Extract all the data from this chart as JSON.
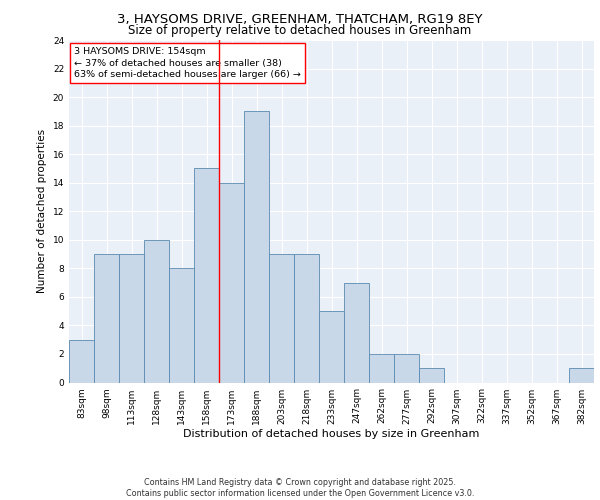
{
  "title_line1": "3, HAYSOMS DRIVE, GREENHAM, THATCHAM, RG19 8EY",
  "title_line2": "Size of property relative to detached houses in Greenham",
  "xlabel": "Distribution of detached houses by size in Greenham",
  "ylabel": "Number of detached properties",
  "categories": [
    "83sqm",
    "98sqm",
    "113sqm",
    "128sqm",
    "143sqm",
    "158sqm",
    "173sqm",
    "188sqm",
    "203sqm",
    "218sqm",
    "233sqm",
    "247sqm",
    "262sqm",
    "277sqm",
    "292sqm",
    "307sqm",
    "322sqm",
    "337sqm",
    "352sqm",
    "367sqm",
    "382sqm"
  ],
  "values": [
    3,
    9,
    9,
    10,
    8,
    15,
    14,
    19,
    9,
    9,
    5,
    7,
    2,
    2,
    1,
    0,
    0,
    0,
    0,
    0,
    1
  ],
  "bar_color": "#c8d8e8",
  "bar_edge_color": "#5a8ab0",
  "red_line_x": 5.5,
  "annotation_text": "3 HAYSOMS DRIVE: 154sqm\n← 37% of detached houses are smaller (38)\n63% of semi-detached houses are larger (66) →",
  "annotation_box_color": "white",
  "annotation_box_edge": "red",
  "ylim": [
    0,
    24
  ],
  "yticks": [
    0,
    2,
    4,
    6,
    8,
    10,
    12,
    14,
    16,
    18,
    20,
    22,
    24
  ],
  "background_color": "#eaf0f8",
  "grid_color": "white",
  "footer_line1": "Contains HM Land Registry data © Crown copyright and database right 2025.",
  "footer_line2": "Contains public sector information licensed under the Open Government Licence v3.0.",
  "title_fontsize": 9.5,
  "subtitle_fontsize": 8.5,
  "tick_fontsize": 6.5,
  "ylabel_fontsize": 7.5,
  "xlabel_fontsize": 8.0,
  "annotation_fontsize": 6.8,
  "footer_fontsize": 5.8
}
